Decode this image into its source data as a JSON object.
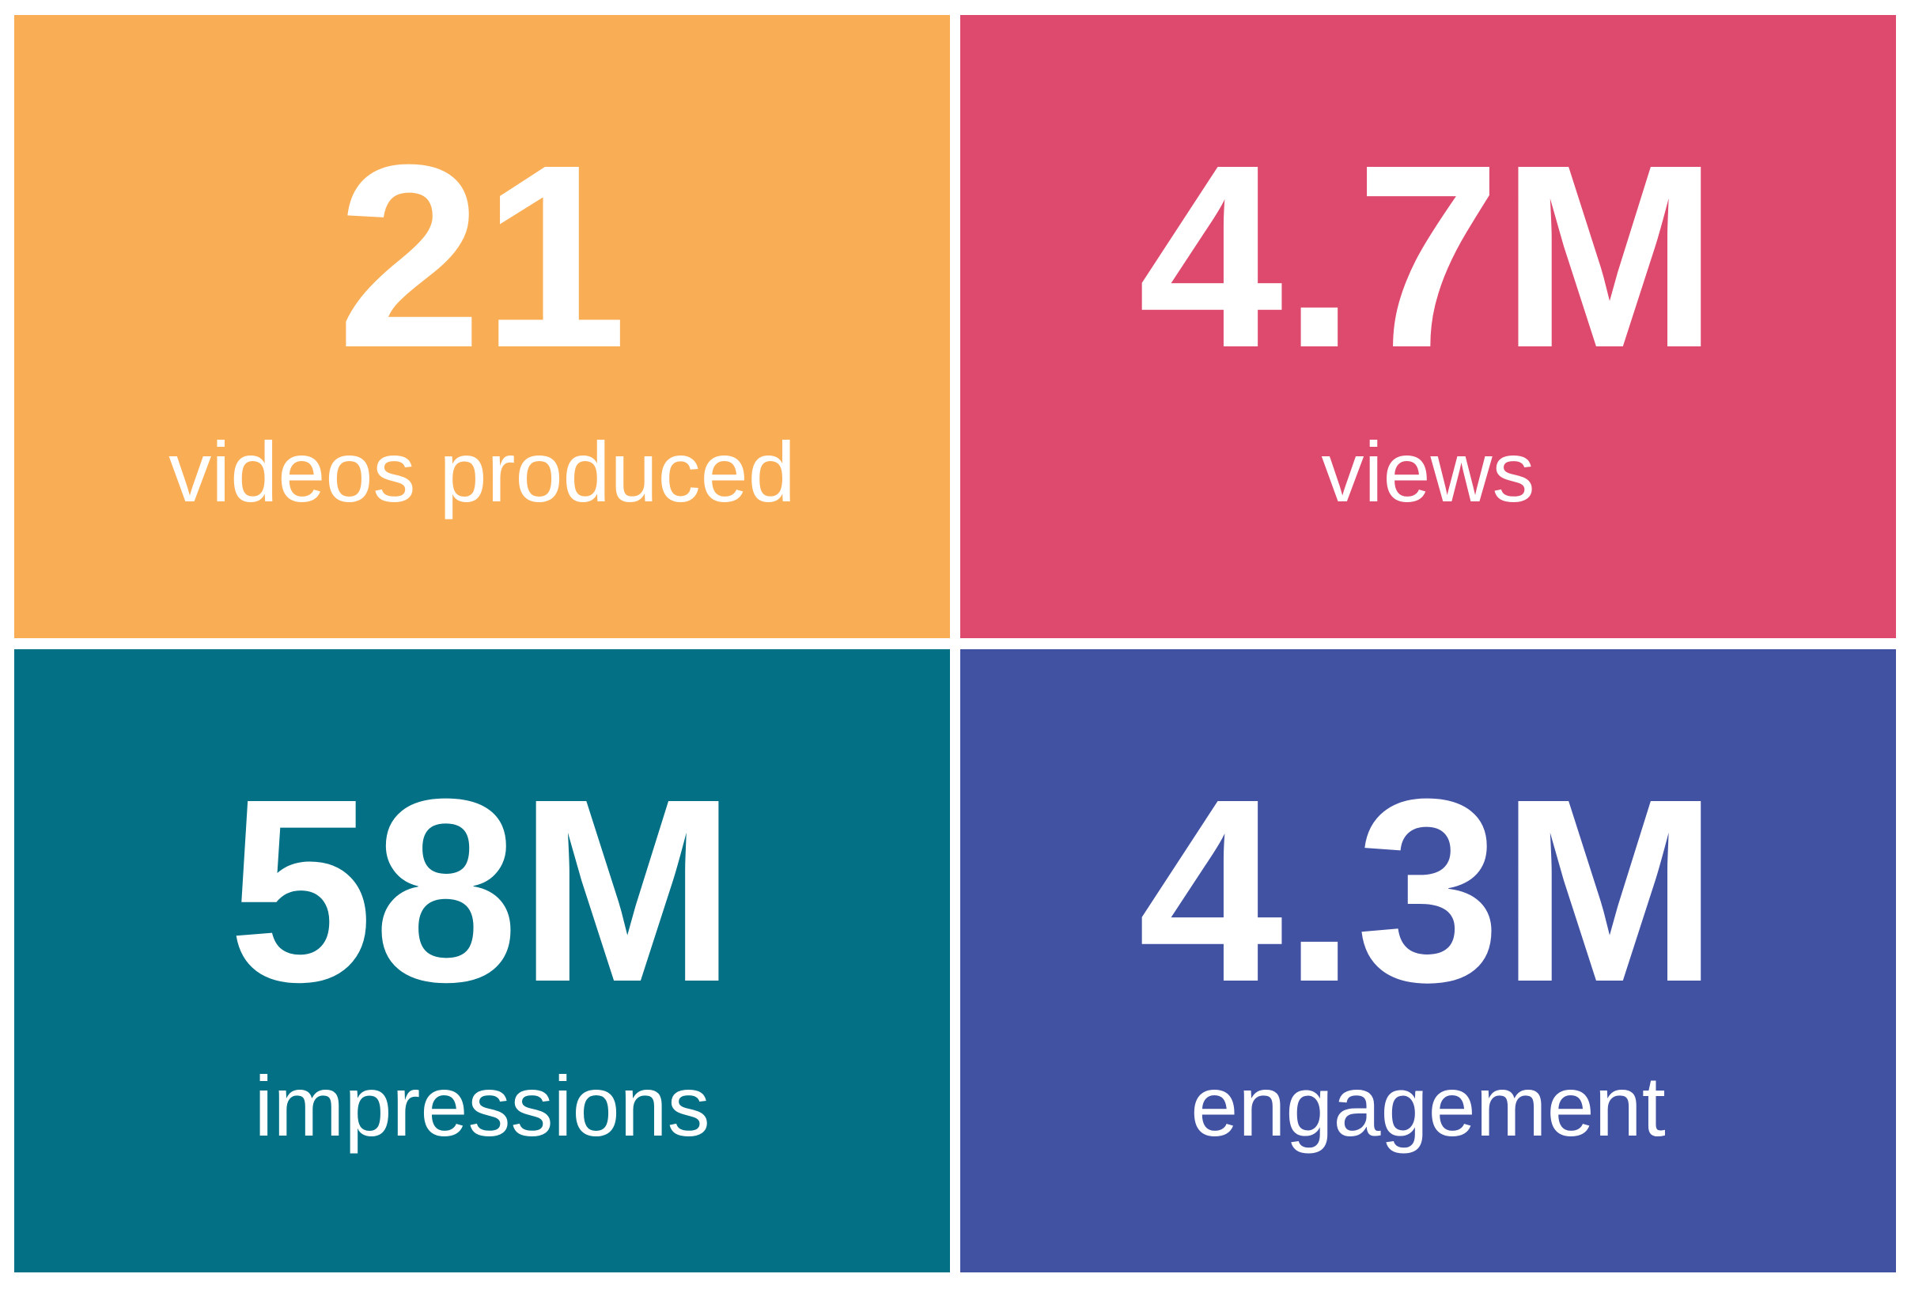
{
  "tiles": [
    {
      "value": "21",
      "label": "videos produced"
    },
    {
      "value": "4.7M",
      "label": "views"
    },
    {
      "value": "58M",
      "label": "impressions"
    },
    {
      "value": "4.3M",
      "label": "engagement"
    }
  ]
}
